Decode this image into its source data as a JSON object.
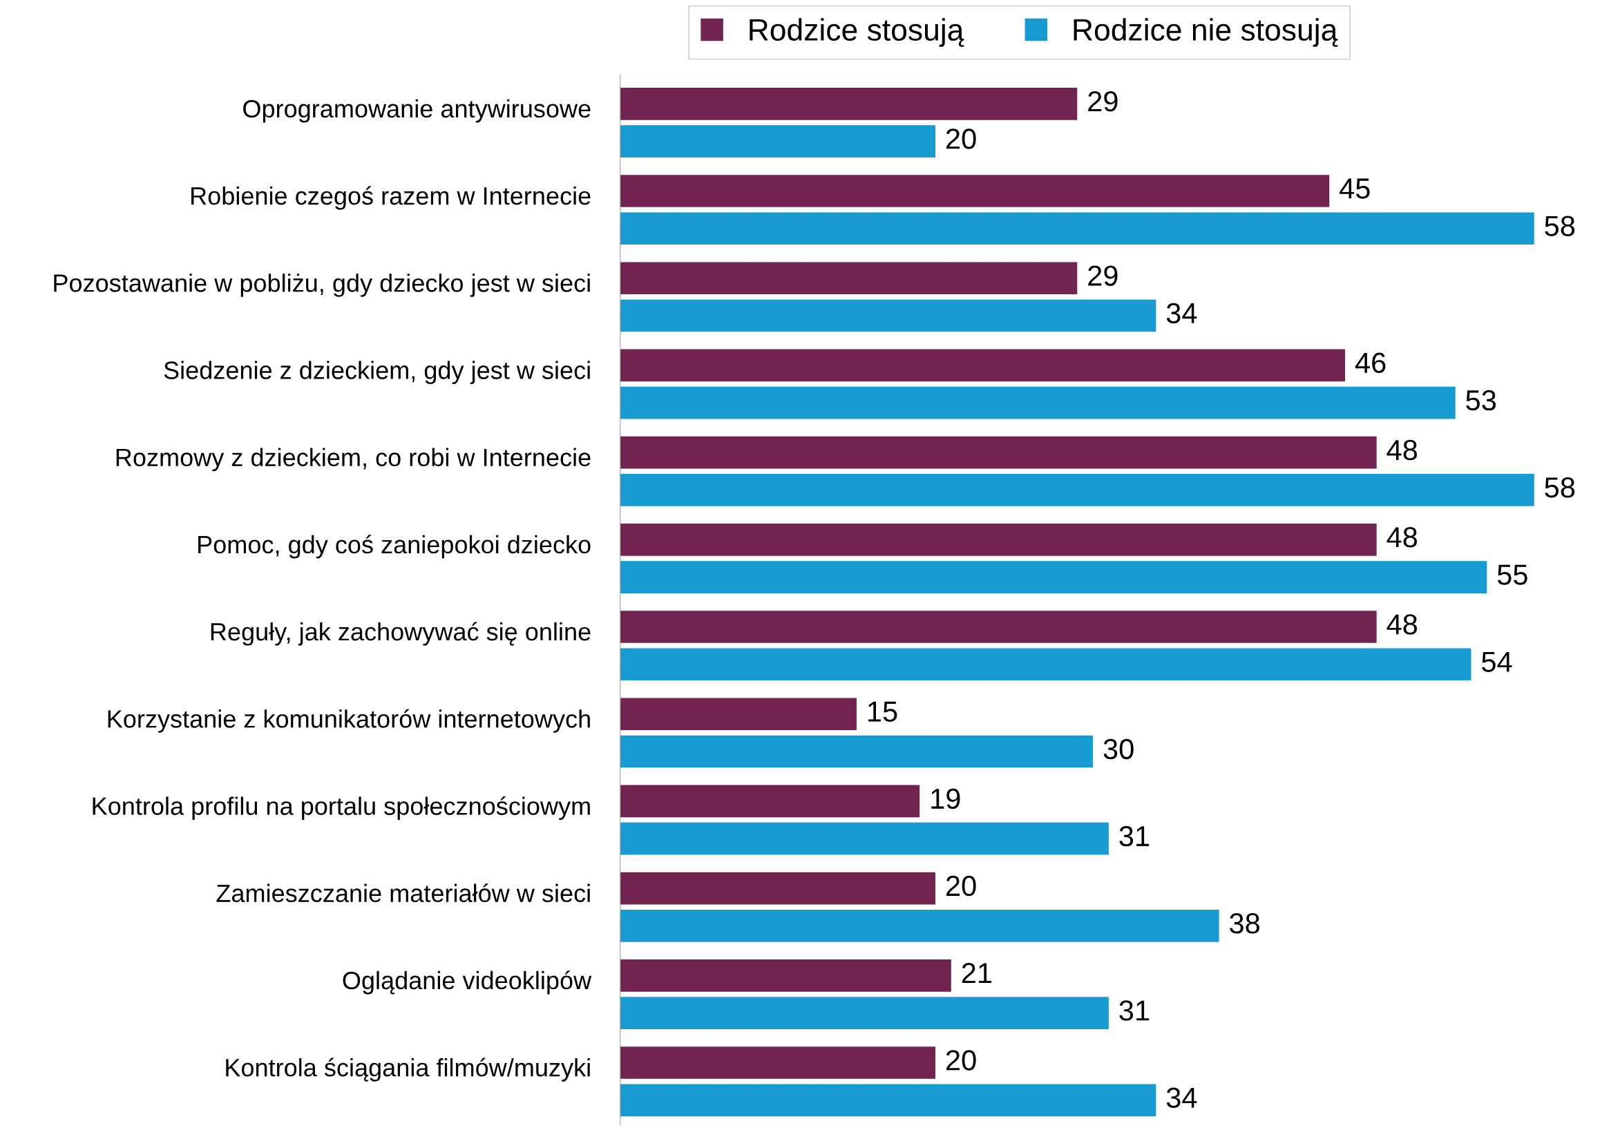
{
  "chart_data": {
    "type": "bar",
    "orientation": "horizontal",
    "data_labels": true,
    "legend": "top",
    "grid": false,
    "tick_labels": "y",
    "categories": [
      "Oprogramowanie antywirusowe",
      "Robienie czegoś razem w Internecie",
      "Pozostawanie w pobliżu, gdy dziecko jest w sieci",
      "Siedzenie z dzieckiem, gdy jest w sieci",
      "Rozmowy z dzieckiem, co robi w Internecie",
      "Pomoc, gdy coś zaniepokoi dziecko",
      "Reguły, jak zachowywać się online",
      "Korzystanie z komunikatorów internetowych",
      "Kontrola profilu na portalu społecznościowym",
      "Zamieszczanie materiałów w sieci",
      "Oglądanie videoklipów",
      "Kontrola ściągania filmów/muzyki"
    ],
    "series": [
      {
        "name": "Rodzice stosują",
        "color": "#70244f",
        "values": [
          29,
          45,
          29,
          46,
          48,
          48,
          48,
          15,
          19,
          20,
          21,
          20
        ]
      },
      {
        "name": "Rodzice nie stosują",
        "color": "#179bd0",
        "values": [
          20,
          58,
          34,
          53,
          58,
          55,
          54,
          30,
          31,
          38,
          31,
          34
        ]
      }
    ]
  }
}
